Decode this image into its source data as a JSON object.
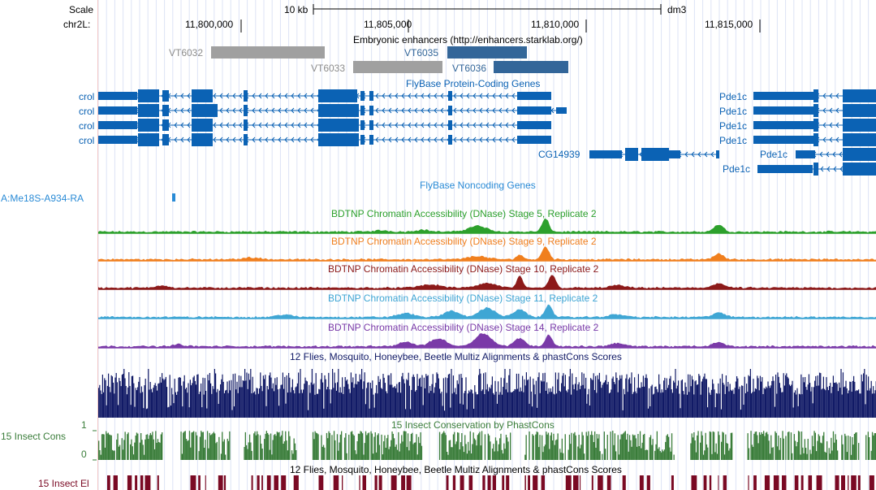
{
  "ruler": {
    "scale_label": "Scale",
    "scale_value": "10 kb",
    "assembly": "dm3",
    "chrom_label": "chr2L:",
    "positions": [
      "11,800,000",
      "11,805,000",
      "11,810,000",
      "11,815,000"
    ]
  },
  "tracks": {
    "enhancers": {
      "title": "Embryonic enhancers (http://enhancers.starklab.org/)",
      "items": [
        {
          "name": "VT6032",
          "color": "#a0a0a0"
        },
        {
          "name": "VT6033",
          "color": "#a0a0a0"
        },
        {
          "name": "VT6035",
          "color": "#336699"
        },
        {
          "name": "VT6036",
          "color": "#336699"
        }
      ]
    },
    "coding": {
      "title": "FlyBase Protein-Coding Genes",
      "color": "#0b62b4",
      "left_genes": [
        "crol",
        "crol",
        "crol",
        "crol"
      ],
      "right_genes": [
        "Pde1c",
        "Pde1c",
        "Pde1c",
        "Pde1c"
      ],
      "cg_gene": "CG14939",
      "right_lower_genes": [
        "Pde1c",
        "Pde1c"
      ]
    },
    "noncoding": {
      "title": "FlyBase Noncoding Genes",
      "item": "A:Me18S-A934-RA",
      "color": "#2a8bd6"
    },
    "dnase": [
      {
        "title": "BDTNP Chromatin Accessibility (DNase) Stage 5, Replicate 2",
        "color": "#2ca02c"
      },
      {
        "title": "BDTNP Chromatin Accessibility (DNase) Stage 9, Replicate 2",
        "color": "#f07f1e"
      },
      {
        "title": "BDTNP Chromatin Accessibility (DNase) Stage 10, Replicate 2",
        "color": "#8c1a1a"
      },
      {
        "title": "BDTNP Chromatin Accessibility (DNase) Stage 11, Replicate 2",
        "color": "#3fa6d4"
      },
      {
        "title": "BDTNP Chromatin Accessibility (DNase) Stage 14, Replicate 2",
        "color": "#7a3aa8"
      }
    ],
    "multiz": {
      "title": "12 Flies, Mosquito, Honeybee, Beetle Multiz Alignments & phastCons Scores",
      "color": "#111a66"
    },
    "phastcons": {
      "title": "15 Insect Conservation by PhastCons",
      "side_label": "15 Insect Cons",
      "axis_max": "1",
      "axis_min": "0",
      "color": "#3a7d3a"
    },
    "elements": {
      "title": "12 Flies, Mosquito, Honeybee, Beetle Multiz Alignments & phastCons Scores",
      "side_label": "15 Insect El",
      "color": "#7a0a24"
    }
  }
}
